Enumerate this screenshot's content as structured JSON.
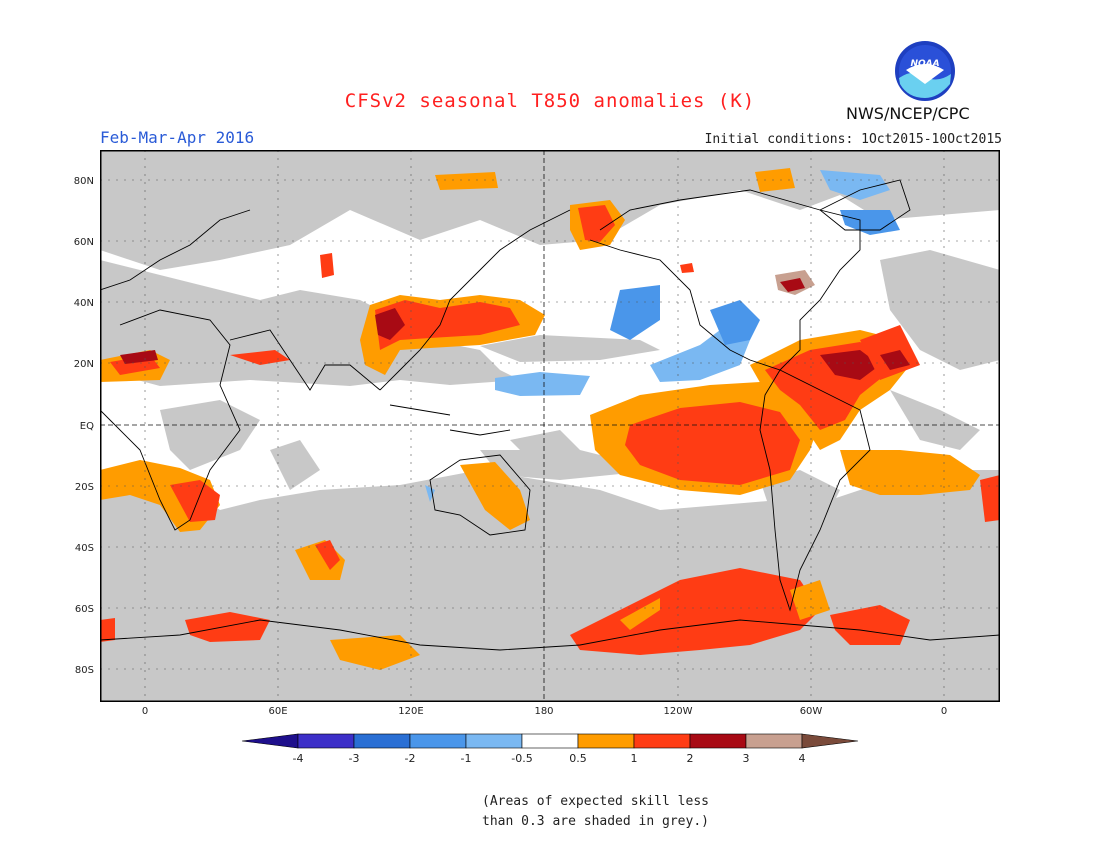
{
  "header": {
    "title": "CFSv2 seasonal T850 anomalies (K)",
    "season": "Feb-Mar-Apr 2016",
    "initial_conditions": "Initial conditions: 1Oct2015-10Oct2015",
    "agency": "NWS/NCEP/CPC",
    "logo_text": "NOAA"
  },
  "map": {
    "lat_labels": [
      "80N",
      "60N",
      "40N",
      "20N",
      "EQ",
      "20S",
      "40S",
      "60S",
      "80S"
    ],
    "lon_labels": [
      "0",
      "60E",
      "120E",
      "180",
      "120W",
      "60W",
      "0"
    ],
    "colors": {
      "skill_grey": "#c8c8c8",
      "ocean_land_blank": "#ffffff",
      "coast": "#000000"
    }
  },
  "colorbar": {
    "labels": [
      "-4",
      "-3",
      "-2",
      "-1",
      "-0.5",
      "0.5",
      "1",
      "2",
      "3",
      "4"
    ],
    "colors": [
      "#1e0f8c",
      "#3c2fc8",
      "#2a6fd4",
      "#4a96ea",
      "#7ab8f2",
      "#ffffff",
      "#ff9c00",
      "#ff3c14",
      "#a80a14",
      "#c8a090",
      "#7a4a3a"
    ]
  },
  "footnote": {
    "line1": "(Areas of expected skill less",
    "line2": "than 0.3 are shaded in grey.)"
  }
}
